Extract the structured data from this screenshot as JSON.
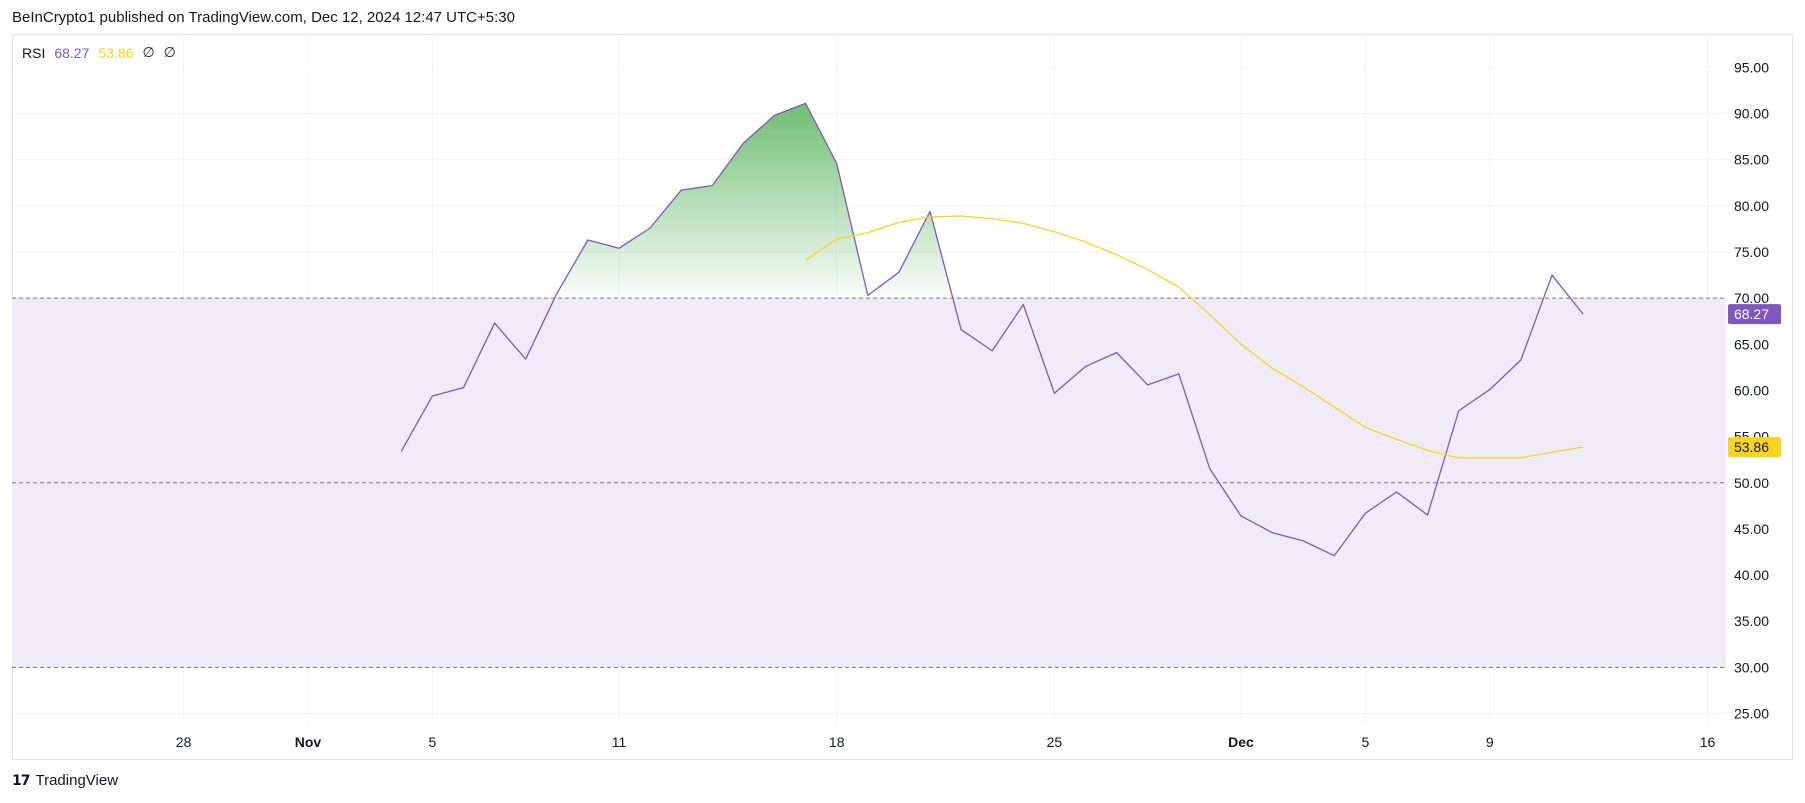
{
  "header": {
    "attribution": "BeInCrypto1 published on TradingView.com, Dec 12, 2024 12:47 UTC+5:30"
  },
  "legend": {
    "name": "RSI",
    "rsi_value": "68.27",
    "ma_value": "53.86",
    "na1": "∅",
    "na2": "∅"
  },
  "footer": {
    "logo_icon": "tradingview-logo-icon",
    "logo_text": "TradingView"
  },
  "colors": {
    "rsi": "#7e57c2",
    "ma": "#f7d51b",
    "band_fill": "#efebf8",
    "overbought_fill_top": "#66bb6a",
    "grid": "#f0f3fa",
    "dashed": "#787b86"
  },
  "chart_data": {
    "type": "line",
    "y_ticks": [
      "95.00",
      "90.00",
      "85.00",
      "80.00",
      "75.00",
      "70.00",
      "65.00",
      "60.00",
      "55.00",
      "50.00",
      "45.00",
      "40.00",
      "35.00",
      "30.00",
      "25.00"
    ],
    "ylim": [
      25,
      95
    ],
    "x_ticks": [
      {
        "label": "28",
        "day": -4,
        "bold": false
      },
      {
        "label": "Nov",
        "day": 0,
        "bold": true
      },
      {
        "label": "5",
        "day": 4,
        "bold": false
      },
      {
        "label": "11",
        "day": 10,
        "bold": false
      },
      {
        "label": "18",
        "day": 17,
        "bold": false
      },
      {
        "label": "25",
        "day": 24,
        "bold": false
      },
      {
        "label": "Dec",
        "day": 30,
        "bold": true
      },
      {
        "label": "5",
        "day": 34,
        "bold": false
      },
      {
        "label": "9",
        "day": 38,
        "bold": false
      },
      {
        "label": "16",
        "day": 45,
        "bold": false
      }
    ],
    "reference_lines": [
      70,
      50,
      30
    ],
    "band": [
      30,
      70
    ],
    "series": [
      {
        "name": "RSI",
        "color": "#7e57c2",
        "last_label": "68.27",
        "points": [
          [
            3,
            53.4
          ],
          [
            4,
            59.4
          ],
          [
            5,
            60.3
          ],
          [
            6,
            67.3
          ],
          [
            7,
            63.4
          ],
          [
            8,
            70.5
          ],
          [
            9,
            76.3
          ],
          [
            10,
            75.4
          ],
          [
            11,
            77.6
          ],
          [
            12,
            81.7
          ],
          [
            13,
            82.2
          ],
          [
            14,
            86.8
          ],
          [
            15,
            89.8
          ],
          [
            16,
            91.1
          ],
          [
            17,
            84.6
          ],
          [
            18,
            70.3
          ],
          [
            19,
            72.8
          ],
          [
            20,
            79.4
          ],
          [
            21,
            66.6
          ],
          [
            22,
            64.3
          ],
          [
            23,
            69.3
          ],
          [
            24,
            59.7
          ],
          [
            25,
            62.6
          ],
          [
            26,
            64.1
          ],
          [
            27,
            60.6
          ],
          [
            28,
            61.8
          ],
          [
            29,
            51.5
          ],
          [
            30,
            46.4
          ],
          [
            31,
            44.6
          ],
          [
            32,
            43.7
          ],
          [
            33,
            42.1
          ],
          [
            34,
            46.7
          ],
          [
            35,
            49.0
          ],
          [
            36,
            46.5
          ],
          [
            37,
            57.8
          ],
          [
            38,
            60.1
          ],
          [
            39,
            63.3
          ],
          [
            40,
            72.5
          ],
          [
            41,
            68.27
          ]
        ]
      },
      {
        "name": "",
        "color": "#f7d51b",
        "last_label": "53.86",
        "points": [
          [
            16,
            74.1
          ],
          [
            17,
            76.4
          ],
          [
            18,
            77.1
          ],
          [
            19,
            78.2
          ],
          [
            20,
            78.8
          ],
          [
            21,
            78.9
          ],
          [
            22,
            78.6
          ],
          [
            23,
            78.1
          ],
          [
            24,
            77.2
          ],
          [
            25,
            76.1
          ],
          [
            26,
            74.7
          ],
          [
            27,
            73.1
          ],
          [
            28,
            71.2
          ],
          [
            29,
            68.2
          ],
          [
            30,
            65.0
          ],
          [
            31,
            62.4
          ],
          [
            32,
            60.4
          ],
          [
            33,
            58.2
          ],
          [
            34,
            56.0
          ],
          [
            35,
            54.7
          ],
          [
            36,
            53.5
          ],
          [
            37,
            52.7
          ],
          [
            38,
            52.7
          ],
          [
            39,
            52.7
          ],
          [
            40,
            53.3
          ],
          [
            41,
            53.86
          ]
        ]
      }
    ]
  }
}
